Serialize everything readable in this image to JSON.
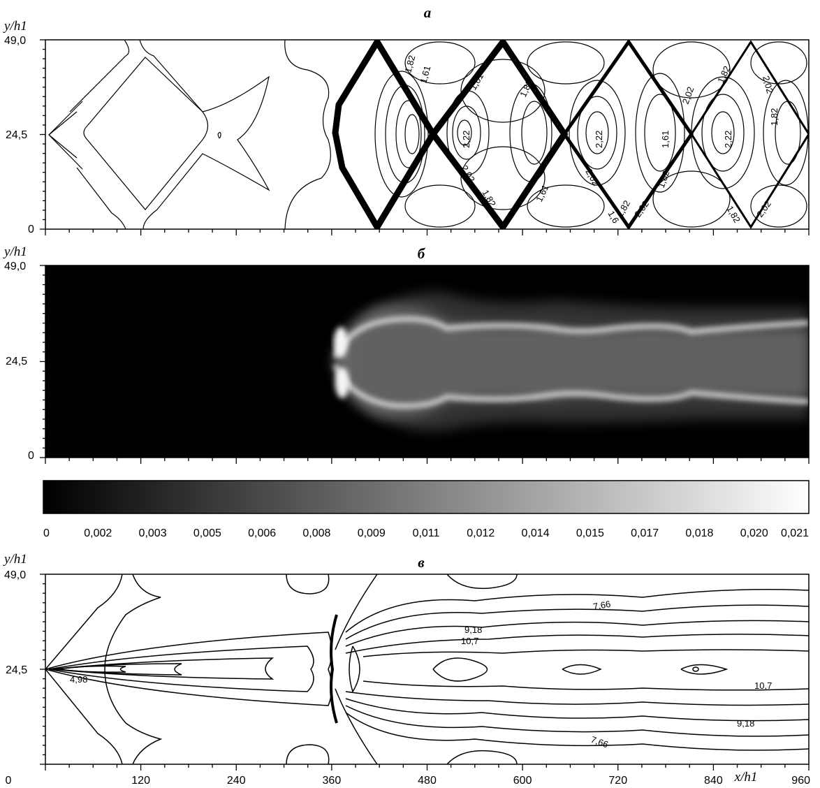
{
  "chart_data": [
    {
      "type": "contour",
      "panel_label": "a",
      "ylabel": "y/h1",
      "ylabel_sub": "1",
      "ylim": [
        0,
        49
      ],
      "ytick_labels": [
        "0",
        "24,5",
        "49,0"
      ],
      "xlim": [
        0,
        960
      ],
      "grid": false,
      "isoline_labels": [
        "1,82",
        "1,61",
        "1,61",
        "1,82",
        "2,02",
        "1,82",
        "2,02",
        "2,22",
        "2,22",
        "1,61",
        "2,22",
        "1,82",
        "2,02",
        "1,61",
        "2,02",
        "1,82",
        "1,6",
        "1,82",
        "2,02",
        "1,82",
        "2,02",
        "1,82"
      ]
    },
    {
      "type": "heatmap",
      "panel_label": "б",
      "ylabel": "y/h1",
      "ylabel_sub": "1",
      "ylim": [
        0,
        49
      ],
      "ytick_labels": [
        "0",
        "24,5",
        "49,0"
      ],
      "xlim": [
        0,
        960
      ],
      "colormap": "grayscale",
      "colorbar": {
        "range": [
          0,
          0.021
        ],
        "tick_labels": [
          "0",
          "0,002",
          "0,003",
          "0,005",
          "0,006",
          "0,008",
          "0,009",
          "0,011",
          "0,012",
          "0,014",
          "0,015",
          "0,017",
          "0,018",
          "0,020",
          "0,021"
        ]
      }
    },
    {
      "type": "contour",
      "panel_label": "в",
      "ylabel": "y/h1",
      "ylabel_sub": "1",
      "xlabel": "x/h1",
      "xlabel_sub": "1",
      "ylim": [
        0,
        49
      ],
      "ytick_labels": [
        "0",
        "24,5",
        "49,0"
      ],
      "xlim": [
        0,
        960
      ],
      "xtick_labels": [
        "0",
        "120",
        "240",
        "360",
        "480",
        "600",
        "720",
        "840",
        "960"
      ],
      "grid": false,
      "isoline_labels": [
        "7,66",
        "9,18",
        "10,7",
        "4,98",
        "10,7",
        "9,18",
        "7,66"
      ]
    }
  ]
}
